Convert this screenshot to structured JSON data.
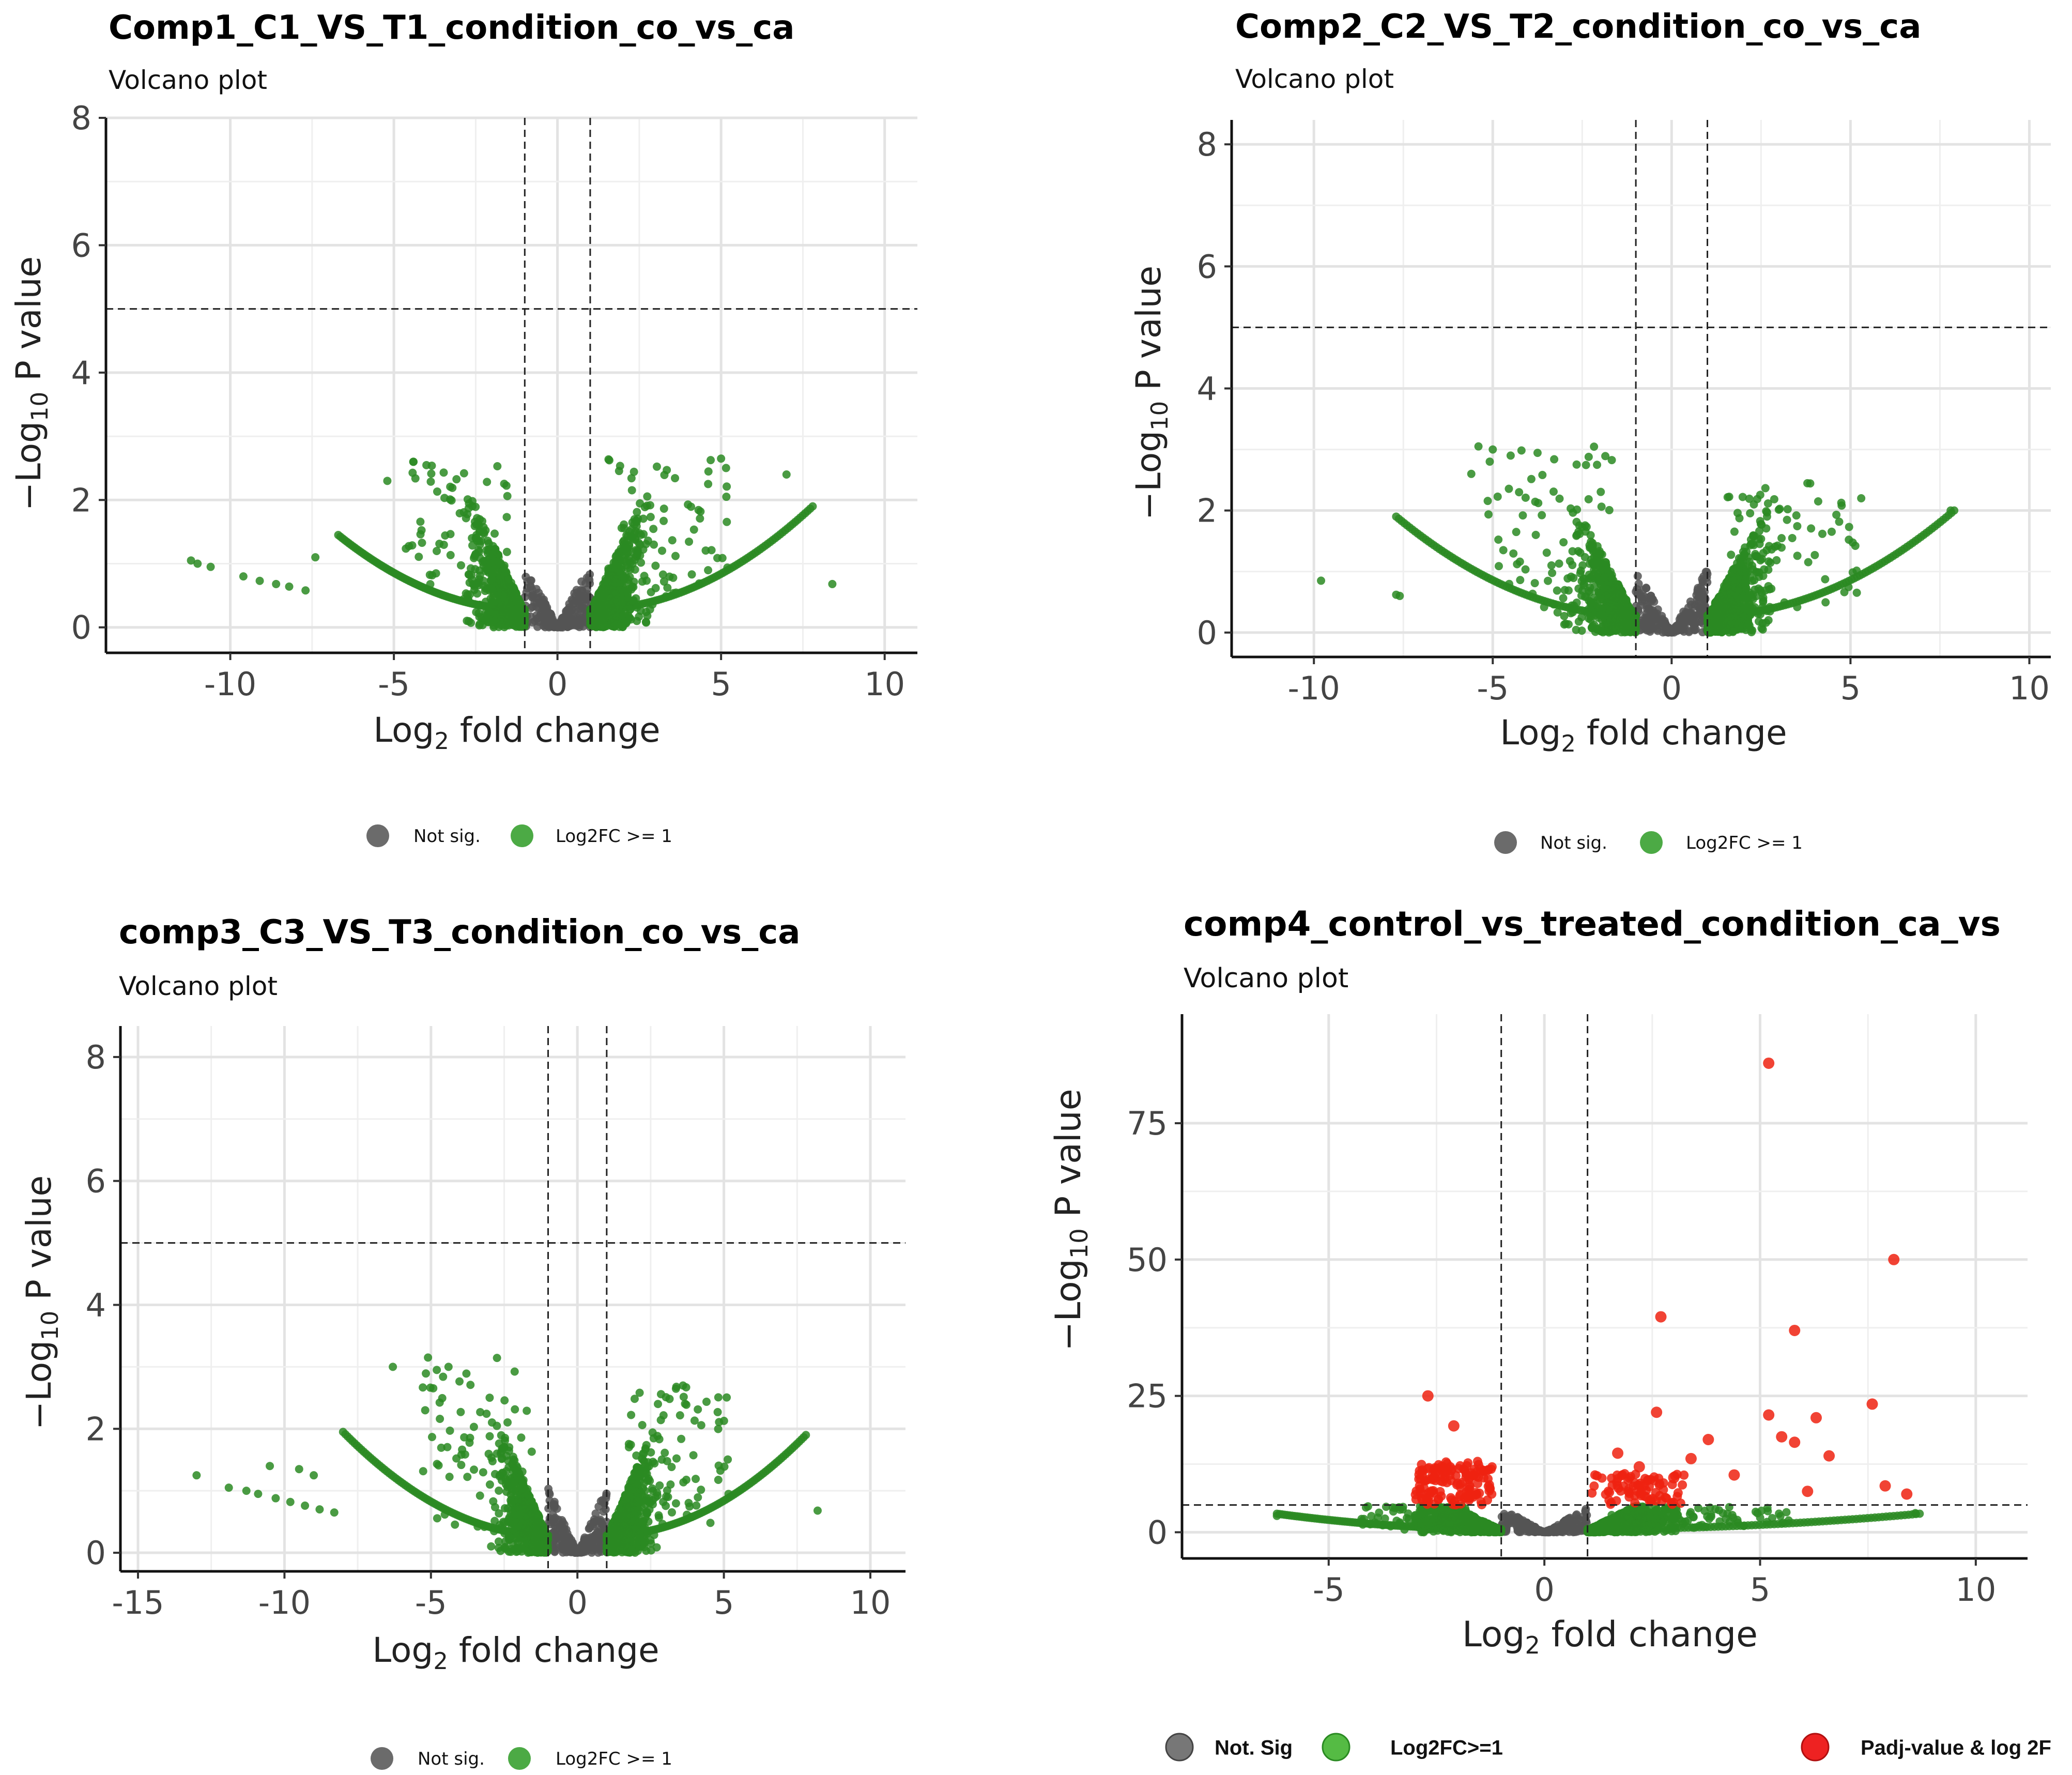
{
  "chart_data": [
    {
      "type": "scatter",
      "title": "Comp1_C1_VS_T1_condition_co_vs_ca",
      "subtitle": "Volcano plot",
      "xlabel": "Log2 fold change",
      "ylabel": "-Log10 P value",
      "xlim": [
        -13.8,
        11.0
      ],
      "ylim": [
        -0.4,
        8.0
      ],
      "xticks": [
        -10,
        -5,
        0,
        5,
        10
      ],
      "yticks": [
        0,
        2,
        4,
        6,
        8
      ],
      "thresholds": {
        "fc": 1,
        "p": 5
      },
      "legend": [
        "Not sig.",
        "Log2FC >= 1"
      ],
      "stats": {
        "left_max_y": 2.6,
        "right_max_y": 2.65,
        "left_arm_end": -6.7,
        "right_arm_end": 7.8
      },
      "outliers": [
        [
          -11.2,
          1.05
        ],
        [
          -11.0,
          1.0
        ],
        [
          -10.6,
          0.95
        ],
        [
          -9.6,
          0.8
        ],
        [
          -9.1,
          0.73
        ],
        [
          -8.6,
          0.68
        ],
        [
          -8.2,
          0.64
        ],
        [
          -7.7,
          0.58
        ],
        [
          -7.4,
          1.1
        ],
        [
          8.4,
          0.68
        ],
        [
          7.0,
          2.4
        ],
        [
          5.0,
          2.65
        ],
        [
          -5.2,
          2.3
        ],
        [
          -4.4,
          2.6
        ]
      ],
      "legend_style": "small"
    },
    {
      "type": "scatter",
      "title": "Comp2_C2_VS_T2_condition_co_vs_ca",
      "subtitle": "Volcano plot",
      "xlabel": "Log2 fold change",
      "ylabel": "-Log10 P value",
      "xlim": [
        -12.3,
        10.6
      ],
      "ylim": [
        -0.4,
        8.4
      ],
      "xticks": [
        -10,
        -5,
        0,
        5,
        10
      ],
      "yticks": [
        0,
        2,
        4,
        6,
        8
      ],
      "thresholds": {
        "fc": 1,
        "p": 5
      },
      "legend": [
        "Not sig.",
        "Log2FC >= 1"
      ],
      "stats": {
        "left_max_y": 3.05,
        "right_max_y": 2.45,
        "left_arm_end": -7.7,
        "right_arm_end": 7.9
      },
      "outliers": [
        [
          -9.8,
          0.85
        ],
        [
          -7.7,
          0.62
        ],
        [
          -7.6,
          0.6
        ],
        [
          -5.4,
          3.05
        ],
        [
          -5.0,
          3.0
        ],
        [
          -4.5,
          2.9
        ],
        [
          -5.6,
          2.6
        ],
        [
          7.8,
          2.0
        ],
        [
          5.3,
          2.2
        ]
      ],
      "legend_style": "small"
    },
    {
      "type": "scatter",
      "title": "comp3_C3_VS_T3_condition_co_vs_ca",
      "subtitle": "Volcano plot",
      "xlabel": "Log2 fold change",
      "ylabel": "-Log10 P value",
      "xlim": [
        -15.6,
        11.2
      ],
      "ylim": [
        -0.3,
        8.5
      ],
      "xticks": [
        -15,
        -10,
        -5,
        0,
        5,
        10
      ],
      "yticks": [
        0,
        2,
        4,
        6,
        8
      ],
      "thresholds": {
        "fc": 1,
        "p": 5
      },
      "legend": [
        "Not sig.",
        "Log2FC >= 1"
      ],
      "stats": {
        "left_max_y": 3.15,
        "right_max_y": 2.7,
        "left_arm_end": -8.0,
        "right_arm_end": 7.8
      },
      "outliers": [
        [
          -13.0,
          1.25
        ],
        [
          -11.9,
          1.05
        ],
        [
          -11.3,
          1.0
        ],
        [
          -10.9,
          0.95
        ],
        [
          -10.3,
          0.88
        ],
        [
          -9.8,
          0.82
        ],
        [
          -9.3,
          0.76
        ],
        [
          -8.8,
          0.7
        ],
        [
          -8.3,
          0.65
        ],
        [
          -10.5,
          1.4
        ],
        [
          -9.5,
          1.35
        ],
        [
          -9.0,
          1.25
        ],
        [
          8.2,
          0.68
        ],
        [
          -6.3,
          3.0
        ],
        [
          -5.1,
          3.15
        ],
        [
          -4.8,
          2.95
        ],
        [
          -4.4,
          3.0
        ]
      ],
      "legend_style": "small"
    },
    {
      "type": "scatter",
      "title": "comp4_control_vs_treated_condition_ca_vs",
      "subtitle": "Volcano plot",
      "xlabel": "Log2 fold change",
      "ylabel": "-Log10 P value",
      "xlim": [
        -8.4,
        11.2
      ],
      "ylim": [
        -4.8,
        95.0
      ],
      "xticks": [
        -5,
        0,
        5,
        10
      ],
      "yticks": [
        0,
        25,
        50,
        75
      ],
      "thresholds": {
        "fc": 1,
        "p": 5
      },
      "legend": [
        "Not. Sig",
        "Log2FC>=1",
        "Padj-value & log 2F"
      ],
      "stats": {
        "left_max_y": 4.8,
        "right_max_y": 4.8,
        "left_arm_end": -6.2,
        "right_arm_end": 8.7
      },
      "outliers": [
        [
          -6.2,
          3.0
        ],
        [
          8.6,
          3.5
        ]
      ],
      "significant": [
        [
          5.2,
          86.0
        ],
        [
          8.1,
          50.0
        ],
        [
          5.8,
          37.0
        ],
        [
          2.7,
          39.5
        ],
        [
          -2.7,
          25.0
        ],
        [
          7.6,
          23.5
        ],
        [
          2.6,
          22.0
        ],
        [
          5.2,
          21.5
        ],
        [
          6.3,
          21.0
        ],
        [
          1.7,
          14.5
        ],
        [
          -2.1,
          19.5
        ],
        [
          3.8,
          17.0
        ],
        [
          5.5,
          17.5
        ],
        [
          5.8,
          16.5
        ],
        [
          6.6,
          14.0
        ],
        [
          3.4,
          13.5
        ],
        [
          7.9,
          8.5
        ],
        [
          8.4,
          7.0
        ],
        [
          4.4,
          10.5
        ],
        [
          6.1,
          7.5
        ],
        [
          3.0,
          10.0
        ],
        [
          2.2,
          12.0
        ]
      ],
      "legend_style": "bold"
    }
  ]
}
